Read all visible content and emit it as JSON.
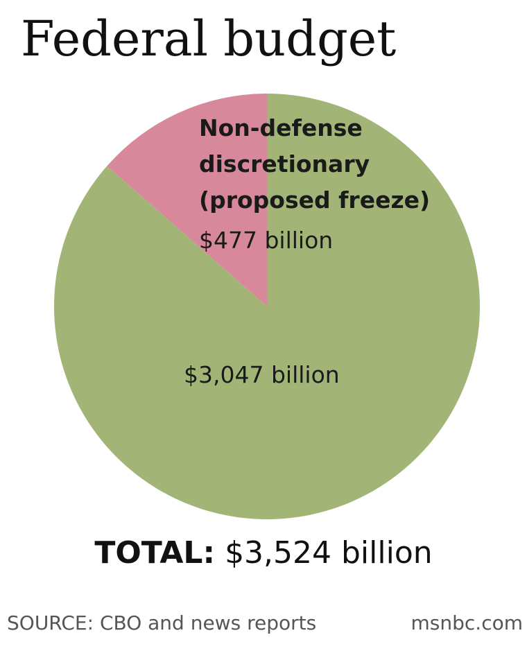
{
  "title": "Federal budget",
  "chart_data": {
    "type": "pie",
    "slices": [
      {
        "label_lines": [
          "Non-defense",
          "discretionary",
          "(proposed freeze)"
        ],
        "value_label": "$477 billion",
        "value": 477,
        "color": "#d8889b"
      },
      {
        "label_lines": [],
        "value_label": "$3,047 billion",
        "value": 3047,
        "color": "#a2b577"
      }
    ]
  },
  "total": {
    "label": "TOTAL:",
    "value": "$3,524 billion"
  },
  "footer": {
    "source": "SOURCE:  CBO and news reports",
    "credit": "msnbc.com"
  }
}
